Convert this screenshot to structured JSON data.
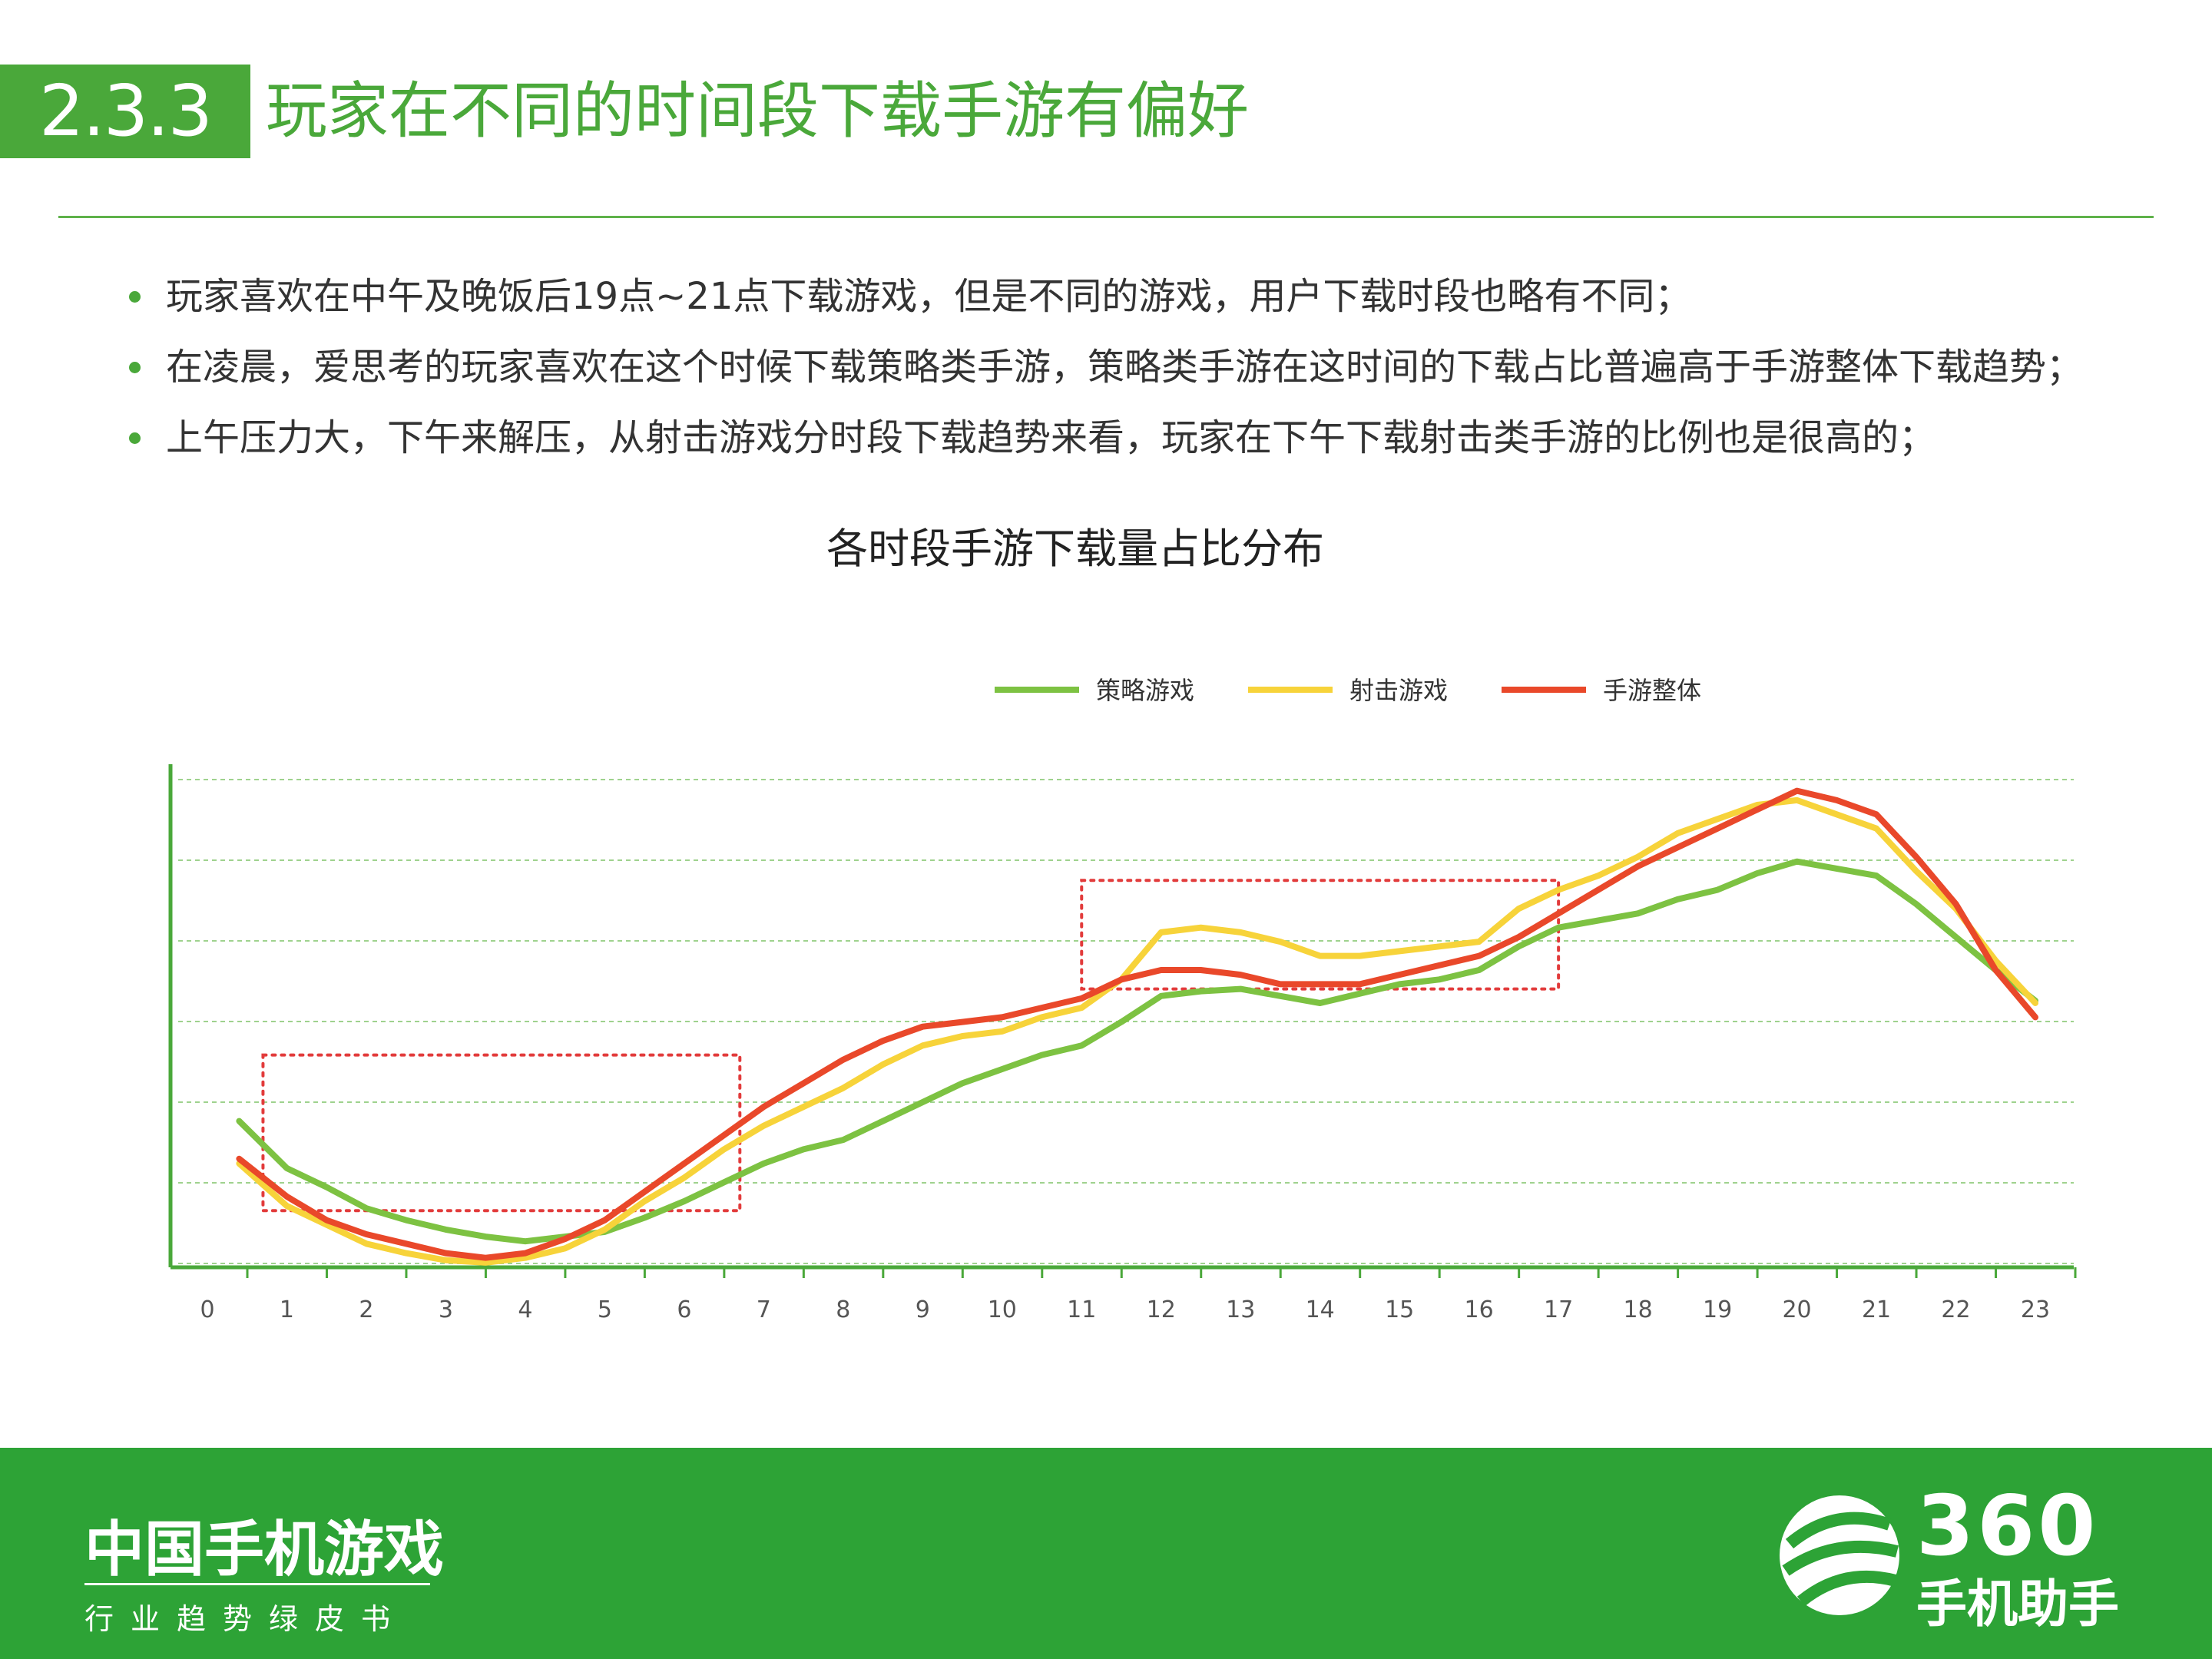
{
  "header": {
    "section_number": "2.3.3",
    "title": "玩家在不同的时间段下载手游有偏好"
  },
  "bullets": [
    "玩家喜欢在中午及晚饭后19点~21点下载游戏，但是不同的游戏，用户下载时段也略有不同；",
    "在凌晨，爱思考的玩家喜欢在这个时候下载策略类手游，策略类手游在这时间的下载占比普遍高于手游整体下载趋势；",
    "上午压力大，下午来解压，从射击游戏分时段下载趋势来看，玩家在下午下载射击类手游的比例也是很高的；"
  ],
  "colors": {
    "brand_green": "#4aa83a",
    "footer_green": "#2da336",
    "strategy": "#7dc242",
    "shooter": "#f7d33a",
    "overall": "#e9482a",
    "highlight": "#e23b3b"
  },
  "chart_data": {
    "type": "line",
    "title": "各时段手游下载量占比分布",
    "xlabel": "",
    "ylabel": "",
    "categories": [
      "0",
      "1",
      "2",
      "3",
      "4",
      "5",
      "6",
      "7",
      "8",
      "9",
      "10",
      "11",
      "12",
      "13",
      "14",
      "15",
      "16",
      "17",
      "18",
      "19",
      "20",
      "21",
      "22",
      "23"
    ],
    "x": [
      0.4,
      1.0,
      1.5,
      2.0,
      2.5,
      3.0,
      3.5,
      4.0,
      4.5,
      5.0,
      5.5,
      6.0,
      6.5,
      7.0,
      7.5,
      8.0,
      8.5,
      9.0,
      9.5,
      10.0,
      10.5,
      11.0,
      11.5,
      12.0,
      12.5,
      13.0,
      13.5,
      14.0,
      14.5,
      15.0,
      15.5,
      16.0,
      16.5,
      17.0,
      17.5,
      18.0,
      18.5,
      19.0,
      19.5,
      20.0,
      20.5,
      21.0,
      21.5,
      22.0,
      22.5,
      23.0
    ],
    "series": [
      {
        "name": "策略游戏",
        "color": "#7dc242",
        "values": [
          26,
          16,
          12,
          7.5,
          5,
          3,
          1.5,
          0.5,
          1.5,
          2.5,
          5.5,
          9,
          13,
          17,
          20,
          22,
          26,
          30,
          34,
          37,
          40,
          42,
          47,
          52.5,
          53.5,
          54,
          52.5,
          51,
          53,
          55,
          56,
          58,
          63,
          67,
          68.5,
          70,
          73,
          75,
          78.5,
          81,
          79.5,
          78,
          72,
          65,
          58,
          51.5
        ]
      },
      {
        "name": "射击游戏",
        "color": "#f7d33a",
        "values": [
          17,
          8,
          4,
          0,
          -2,
          -3.5,
          -4,
          -3,
          -1,
          3,
          9,
          14,
          20,
          25,
          29,
          33,
          38,
          42,
          44,
          45,
          48,
          50,
          56,
          66,
          67,
          66,
          64,
          61,
          61,
          62,
          63,
          64,
          71,
          75,
          78,
          82,
          87,
          90,
          93,
          94,
          91,
          88,
          79,
          71,
          60,
          51
        ]
      },
      {
        "name": "手游整体",
        "color": "#e9482a",
        "values": [
          18,
          10,
          5,
          2,
          0,
          -2,
          -3,
          -2,
          1,
          5,
          11,
          17,
          23,
          29,
          34,
          39,
          43,
          46,
          47,
          48,
          50,
          52,
          56,
          58,
          58,
          57,
          55,
          55,
          55,
          57,
          59,
          61,
          65,
          70,
          75,
          80,
          84,
          88,
          92,
          96,
          94,
          91,
          82,
          72,
          58,
          48
        ]
      }
    ],
    "ylim": [
      -5,
      100
    ],
    "legend_position": "top-center",
    "grid": true,
    "highlight_boxes": [
      {
        "x_range": [
          0.7,
          6.7
        ],
        "y_range": [
          7,
          40
        ]
      },
      {
        "x_range": [
          11.0,
          17.0
        ],
        "y_range": [
          54,
          77
        ]
      }
    ]
  },
  "footer": {
    "title": "中国手机游戏",
    "subtitle": "行业趋势绿皮书",
    "logo_number": "360",
    "logo_text": "手机助手"
  }
}
